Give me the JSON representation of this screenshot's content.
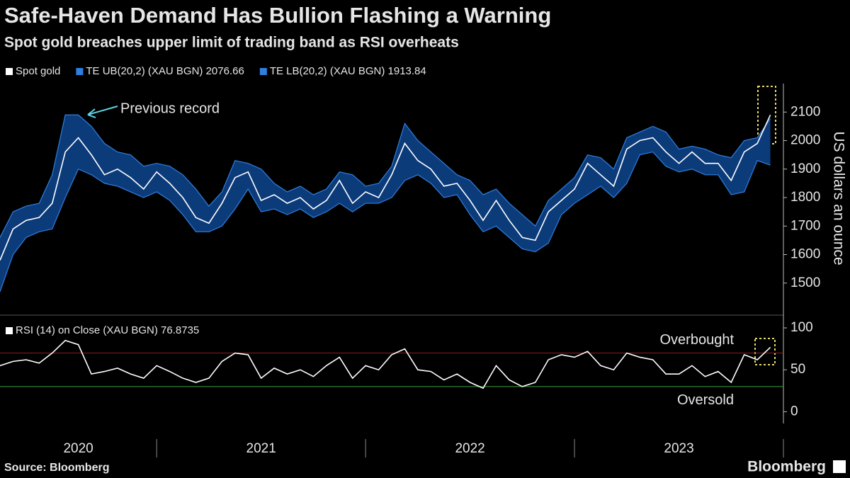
{
  "source": "Source: Bloomberg",
  "logo": "Bloomberg",
  "chart_data": [
    {
      "type": "line",
      "title": "Safe-Haven Demand Has Bullion Flashing a Warning",
      "subtitle": "Spot gold breaches upper limit of trading band as RSI overheats",
      "ylabel": "US dollars an ounce",
      "annotations": [
        {
          "text": "Previous record"
        }
      ],
      "band_color": "#0c3b7a",
      "xlim": [
        2020.25,
        2024.0
      ],
      "ylim": [
        1400,
        2200
      ],
      "yticks": [
        1500,
        1600,
        1700,
        1800,
        1900,
        2000,
        2100
      ],
      "x": [
        2020.25,
        2020.3125,
        2020.375,
        2020.4375,
        2020.5,
        2020.5625,
        2020.625,
        2020.6875,
        2020.75,
        2020.8125,
        2020.875,
        2020.9375,
        2021,
        2021.0625,
        2021.125,
        2021.1875,
        2021.25,
        2021.3125,
        2021.375,
        2021.4375,
        2021.5,
        2021.5625,
        2021.625,
        2021.6875,
        2021.75,
        2021.8125,
        2021.875,
        2021.9375,
        2022,
        2022.0625,
        2022.125,
        2022.1875,
        2022.25,
        2022.3125,
        2022.375,
        2022.4375,
        2022.5,
        2022.5625,
        2022.625,
        2022.6875,
        2022.75,
        2022.8125,
        2022.875,
        2022.9375,
        2023,
        2023.0625,
        2023.125,
        2023.1875,
        2023.25,
        2023.3125,
        2023.375,
        2023.4375,
        2023.5,
        2023.5625,
        2023.625,
        2023.6875,
        2023.75,
        2023.8125,
        2023.875,
        2023.9375
      ],
      "series": [
        {
          "name": "Spot gold",
          "color": "#ffffff",
          "values": [
            1580,
            1690,
            1720,
            1730,
            1780,
            1960,
            2010,
            1950,
            1880,
            1900,
            1870,
            1830,
            1890,
            1850,
            1800,
            1730,
            1710,
            1780,
            1870,
            1890,
            1790,
            1810,
            1780,
            1800,
            1760,
            1790,
            1860,
            1780,
            1820,
            1800,
            1880,
            1990,
            1930,
            1900,
            1840,
            1850,
            1790,
            1720,
            1790,
            1720,
            1660,
            1650,
            1750,
            1790,
            1830,
            1920,
            1880,
            1840,
            1970,
            2000,
            2010,
            1960,
            1920,
            1960,
            1920,
            1920,
            1860,
            1960,
            1990,
            2090
          ]
        },
        {
          "name": "TE UB(20,2) (XAU BGN) 2076.66",
          "color": "#2f7fe0",
          "values": [
            1660,
            1750,
            1770,
            1780,
            1880,
            2090,
            2090,
            2050,
            1990,
            1960,
            1950,
            1910,
            1920,
            1910,
            1880,
            1830,
            1770,
            1820,
            1930,
            1920,
            1900,
            1850,
            1820,
            1840,
            1810,
            1830,
            1890,
            1880,
            1840,
            1850,
            1910,
            2060,
            2000,
            1960,
            1920,
            1880,
            1860,
            1810,
            1830,
            1780,
            1740,
            1700,
            1790,
            1830,
            1870,
            1950,
            1940,
            1900,
            2010,
            2030,
            2050,
            2030,
            1970,
            1980,
            1970,
            1950,
            1940,
            2000,
            2010,
            2076.66
          ]
        },
        {
          "name": "TE LB(20,2) (XAU BGN) 1913.84",
          "color": "#2f7fe0",
          "values": [
            1470,
            1600,
            1660,
            1680,
            1690,
            1800,
            1900,
            1880,
            1850,
            1840,
            1820,
            1800,
            1820,
            1790,
            1740,
            1680,
            1680,
            1700,
            1760,
            1830,
            1750,
            1760,
            1740,
            1760,
            1730,
            1750,
            1780,
            1750,
            1780,
            1780,
            1800,
            1860,
            1880,
            1850,
            1800,
            1810,
            1740,
            1680,
            1700,
            1660,
            1620,
            1610,
            1640,
            1740,
            1780,
            1810,
            1840,
            1800,
            1850,
            1950,
            1960,
            1910,
            1890,
            1900,
            1880,
            1880,
            1810,
            1820,
            1930,
            1913.84
          ]
        }
      ]
    },
    {
      "type": "line",
      "xlim": [
        2020.25,
        2024.0
      ],
      "xticks": [
        {
          "value": 2020,
          "label": "2020"
        },
        {
          "value": 2021,
          "label": "2021"
        },
        {
          "value": 2022,
          "label": "2022"
        },
        {
          "value": 2023,
          "label": "2023"
        }
      ],
      "ylim": [
        -14,
        111
      ],
      "yticks": [
        0,
        50,
        100
      ],
      "reference_lines": [
        {
          "value": 70,
          "label": "Overbought",
          "color": "#8a2020",
          "text_color": "#b03a2e"
        },
        {
          "value": 30,
          "label": "Oversold",
          "color": "#3f9f3f",
          "text_color": "#5cc95c"
        }
      ],
      "x": [
        2020.25,
        2020.3125,
        2020.375,
        2020.4375,
        2020.5,
        2020.5625,
        2020.625,
        2020.6875,
        2020.75,
        2020.8125,
        2020.875,
        2020.9375,
        2021,
        2021.0625,
        2021.125,
        2021.1875,
        2021.25,
        2021.3125,
        2021.375,
        2021.4375,
        2021.5,
        2021.5625,
        2021.625,
        2021.6875,
        2021.75,
        2021.8125,
        2021.875,
        2021.9375,
        2022,
        2022.0625,
        2022.125,
        2022.1875,
        2022.25,
        2022.3125,
        2022.375,
        2022.4375,
        2022.5,
        2022.5625,
        2022.625,
        2022.6875,
        2022.75,
        2022.8125,
        2022.875,
        2022.9375,
        2023,
        2023.0625,
        2023.125,
        2023.1875,
        2023.25,
        2023.3125,
        2023.375,
        2023.4375,
        2023.5,
        2023.5625,
        2023.625,
        2023.6875,
        2023.75,
        2023.8125,
        2023.875,
        2023.9375
      ],
      "series": [
        {
          "name": "RSI (14)  on Close (XAU BGN) 76.8735",
          "color": "#ffffff",
          "values": [
            55,
            60,
            62,
            58,
            70,
            85,
            80,
            45,
            48,
            52,
            45,
            40,
            55,
            48,
            40,
            35,
            40,
            60,
            70,
            68,
            40,
            52,
            45,
            50,
            42,
            55,
            65,
            40,
            55,
            50,
            68,
            75,
            50,
            48,
            38,
            45,
            35,
            28,
            55,
            38,
            30,
            35,
            62,
            68,
            65,
            72,
            55,
            50,
            70,
            65,
            62,
            45,
            45,
            55,
            42,
            48,
            35,
            68,
            62,
            76.8735
          ]
        }
      ]
    }
  ]
}
